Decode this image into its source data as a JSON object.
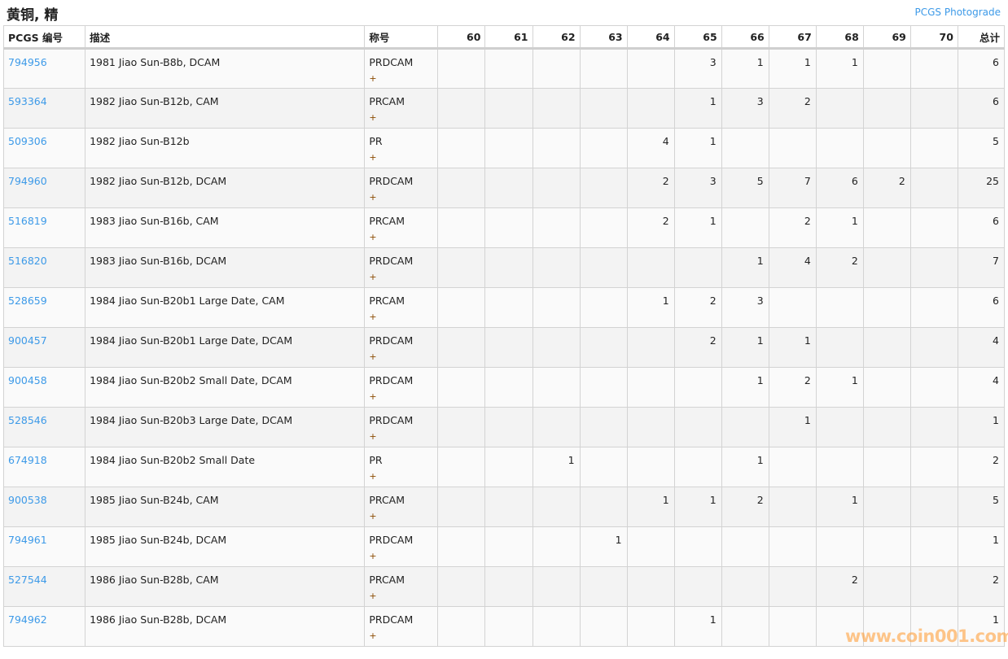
{
  "header": {
    "title": "黄铜, 精",
    "photograde_link": "PCGS Photograde"
  },
  "columns": {
    "pcgs": "PCGS 编号",
    "description": "描述",
    "designation": "称号",
    "grades": [
      "60",
      "61",
      "62",
      "63",
      "64",
      "65",
      "66",
      "67",
      "68",
      "69",
      "70"
    ],
    "total": "总计"
  },
  "plus_symbol": "+",
  "rows": [
    {
      "pcgs": "794956",
      "desc": "1981 Jiao Sun-B8b, DCAM",
      "desig": "PRDCAM",
      "counts": [
        "",
        "",
        "",
        "",
        "",
        "3",
        "1",
        "1",
        "1",
        "",
        ""
      ],
      "total": "6"
    },
    {
      "pcgs": "593364",
      "desc": "1982 Jiao Sun-B12b, CAM",
      "desig": "PRCAM",
      "counts": [
        "",
        "",
        "",
        "",
        "",
        "1",
        "3",
        "2",
        "",
        "",
        ""
      ],
      "total": "6"
    },
    {
      "pcgs": "509306",
      "desc": "1982 Jiao Sun-B12b",
      "desig": "PR",
      "counts": [
        "",
        "",
        "",
        "",
        "4",
        "1",
        "",
        "",
        "",
        "",
        ""
      ],
      "total": "5"
    },
    {
      "pcgs": "794960",
      "desc": "1982 Jiao Sun-B12b, DCAM",
      "desig": "PRDCAM",
      "counts": [
        "",
        "",
        "",
        "",
        "2",
        "3",
        "5",
        "7",
        "6",
        "2",
        ""
      ],
      "total": "25"
    },
    {
      "pcgs": "516819",
      "desc": "1983 Jiao Sun-B16b, CAM",
      "desig": "PRCAM",
      "counts": [
        "",
        "",
        "",
        "",
        "2",
        "1",
        "",
        "2",
        "1",
        "",
        ""
      ],
      "total": "6"
    },
    {
      "pcgs": "516820",
      "desc": "1983 Jiao Sun-B16b, DCAM",
      "desig": "PRDCAM",
      "counts": [
        "",
        "",
        "",
        "",
        "",
        "",
        "1",
        "4",
        "2",
        "",
        ""
      ],
      "total": "7"
    },
    {
      "pcgs": "528659",
      "desc": "1984 Jiao Sun-B20b1 Large Date, CAM",
      "desig": "PRCAM",
      "counts": [
        "",
        "",
        "",
        "",
        "1",
        "2",
        "3",
        "",
        "",
        "",
        ""
      ],
      "total": "6"
    },
    {
      "pcgs": "900457",
      "desc": "1984 Jiao Sun-B20b1 Large Date, DCAM",
      "desig": "PRDCAM",
      "counts": [
        "",
        "",
        "",
        "",
        "",
        "2",
        "1",
        "1",
        "",
        "",
        ""
      ],
      "total": "4"
    },
    {
      "pcgs": "900458",
      "desc": "1984 Jiao Sun-B20b2 Small Date, DCAM",
      "desig": "PRDCAM",
      "counts": [
        "",
        "",
        "",
        "",
        "",
        "",
        "1",
        "2",
        "1",
        "",
        ""
      ],
      "total": "4"
    },
    {
      "pcgs": "528546",
      "desc": "1984 Jiao Sun-B20b3 Large Date, DCAM",
      "desig": "PRDCAM",
      "counts": [
        "",
        "",
        "",
        "",
        "",
        "",
        "",
        "1",
        "",
        "",
        ""
      ],
      "total": "1"
    },
    {
      "pcgs": "674918",
      "desc": "1984 Jiao Sun-B20b2 Small Date",
      "desig": "PR",
      "counts": [
        "",
        "",
        "1",
        "",
        "",
        "",
        "1",
        "",
        "",
        "",
        ""
      ],
      "total": "2"
    },
    {
      "pcgs": "900538",
      "desc": "1985 Jiao Sun-B24b, CAM",
      "desig": "PRCAM",
      "counts": [
        "",
        "",
        "",
        "",
        "1",
        "1",
        "2",
        "",
        "1",
        "",
        ""
      ],
      "total": "5"
    },
    {
      "pcgs": "794961",
      "desc": "1985 Jiao Sun-B24b, DCAM",
      "desig": "PRDCAM",
      "counts": [
        "",
        "",
        "",
        "1",
        "",
        "",
        "",
        "",
        "",
        "",
        ""
      ],
      "total": "1"
    },
    {
      "pcgs": "527544",
      "desc": "1986 Jiao Sun-B28b, CAM",
      "desig": "PRCAM",
      "counts": [
        "",
        "",
        "",
        "",
        "",
        "",
        "",
        "",
        "2",
        "",
        ""
      ],
      "total": "2"
    },
    {
      "pcgs": "794962",
      "desc": "1986 Jiao Sun-B28b, DCAM",
      "desig": "PRDCAM",
      "counts": [
        "",
        "",
        "",
        "",
        "",
        "1",
        "",
        "",
        "",
        "",
        ""
      ],
      "total": "1"
    }
  ],
  "watermark": "www.coin001.com",
  "colors": {
    "link": "#3d9ae8",
    "plus": "#8a4a00",
    "row_odd": "#fafafa",
    "row_even": "#f3f3f3"
  }
}
